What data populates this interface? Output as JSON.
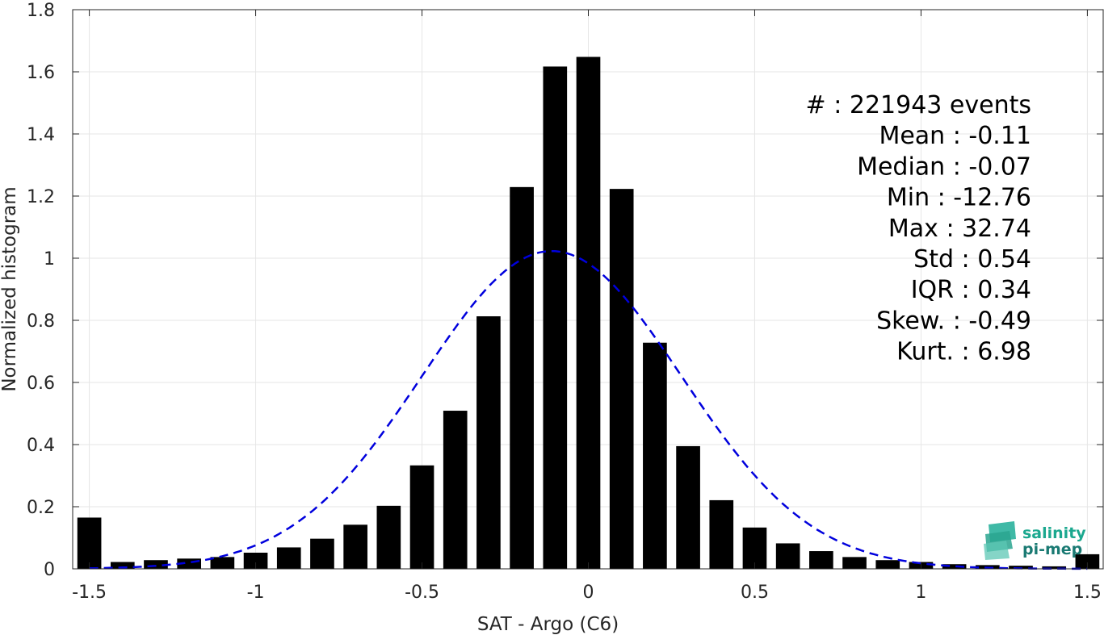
{
  "chart_data": {
    "type": "bar",
    "xlabel": "SAT - Argo (C6)",
    "ylabel": "Normalized histogram",
    "xlim": [
      -1.55,
      1.55
    ],
    "ylim": [
      0,
      1.8
    ],
    "grid": true,
    "x_ticks": [
      -1.5,
      -1,
      -0.5,
      0,
      0.5,
      1,
      1.5
    ],
    "x_tick_labels": [
      "-1.5",
      "-1",
      "-0.5",
      "0",
      "0.5",
      "1",
      "1.5"
    ],
    "y_ticks": [
      0,
      0.2,
      0.4,
      0.6,
      0.8,
      1,
      1.2,
      1.4,
      1.6,
      1.8
    ],
    "y_tick_labels": [
      "0",
      "0.2",
      "0.4",
      "0.6",
      "0.8",
      "1",
      "1.2",
      "1.4",
      "1.6",
      "1.8"
    ],
    "bin_width": 0.1,
    "bar_width_fraction": 0.72,
    "bar_color": "#000000",
    "bins": {
      "x": [
        -1.5,
        -1.4,
        -1.3,
        -1.2,
        -1.1,
        -1.0,
        -0.9,
        -0.8,
        -0.7,
        -0.6,
        -0.5,
        -0.4,
        -0.3,
        -0.2,
        -0.1,
        0.0,
        0.1,
        0.2,
        0.3,
        0.4,
        0.5,
        0.6,
        0.7,
        0.8,
        0.9,
        1.0,
        1.1,
        1.2,
        1.3,
        1.4,
        1.5
      ],
      "values": [
        0.165,
        0.022,
        0.028,
        0.033,
        0.038,
        0.052,
        0.069,
        0.097,
        0.142,
        0.203,
        0.333,
        0.509,
        0.813,
        1.229,
        1.617,
        1.648,
        1.223,
        0.728,
        0.395,
        0.221,
        0.133,
        0.082,
        0.057,
        0.038,
        0.028,
        0.022,
        0.015,
        0.012,
        0.01,
        0.008,
        0.047
      ]
    },
    "fit_curve": {
      "style": "dashed",
      "color": "#0000dd",
      "distribution": "normal",
      "mean": -0.11,
      "std": 0.39,
      "x_range": [
        -1.5,
        1.5
      ]
    },
    "stats": [
      {
        "label": "#",
        "value": ": 221943 events"
      },
      {
        "label": "Mean",
        "value": ": -0.11"
      },
      {
        "label": "Median",
        "value": ": -0.07"
      },
      {
        "label": "Min",
        "value": ": -12.76"
      },
      {
        "label": "Max",
        "value": ": 32.74"
      },
      {
        "label": "Std",
        "value": ": 0.54"
      },
      {
        "label": "IQR",
        "value": ": 0.34"
      },
      {
        "label": "Skew.",
        "value": ": -0.49"
      },
      {
        "label": "Kurt.",
        "value": ": 6.98"
      }
    ]
  },
  "logo": {
    "line1": "salinity",
    "line2": "pi-mep",
    "color1": "#1ba88f",
    "color2": "#1a7a73"
  }
}
